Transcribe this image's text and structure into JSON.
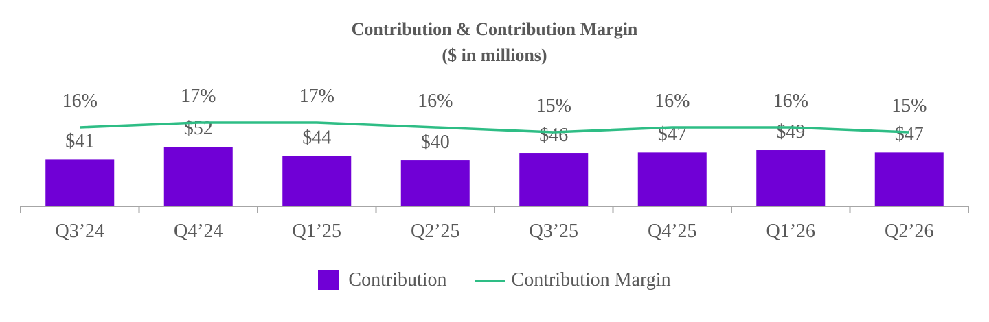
{
  "chart_data": {
    "type": "bar",
    "title": "Contribution & Contribution Margin",
    "subtitle": "($ in millions)",
    "categories": [
      "Q3’24",
      "Q4’24",
      "Q1’25",
      "Q2’25",
      "Q3’25",
      "Q4’25",
      "Q1’26",
      "Q2’26"
    ],
    "series": [
      {
        "name": "Contribution",
        "type": "bar",
        "values": [
          41,
          52,
          44,
          40,
          46,
          47,
          49,
          47
        ],
        "labels": [
          "$41",
          "$52",
          "$44",
          "$40",
          "$46",
          "$47",
          "$49",
          "$47"
        ],
        "color": "#7000D6"
      },
      {
        "name": "Contribution Margin",
        "type": "line",
        "values": [
          16,
          17,
          17,
          16,
          15,
          16,
          16,
          15
        ],
        "labels": [
          "16%",
          "17%",
          "17%",
          "16%",
          "15%",
          "16%",
          "16%",
          "15%"
        ],
        "color": "#2EBD85"
      }
    ],
    "legend_position": "bottom",
    "grid": false,
    "axis_color": "#A6A6A6",
    "text_color": "#595959"
  }
}
